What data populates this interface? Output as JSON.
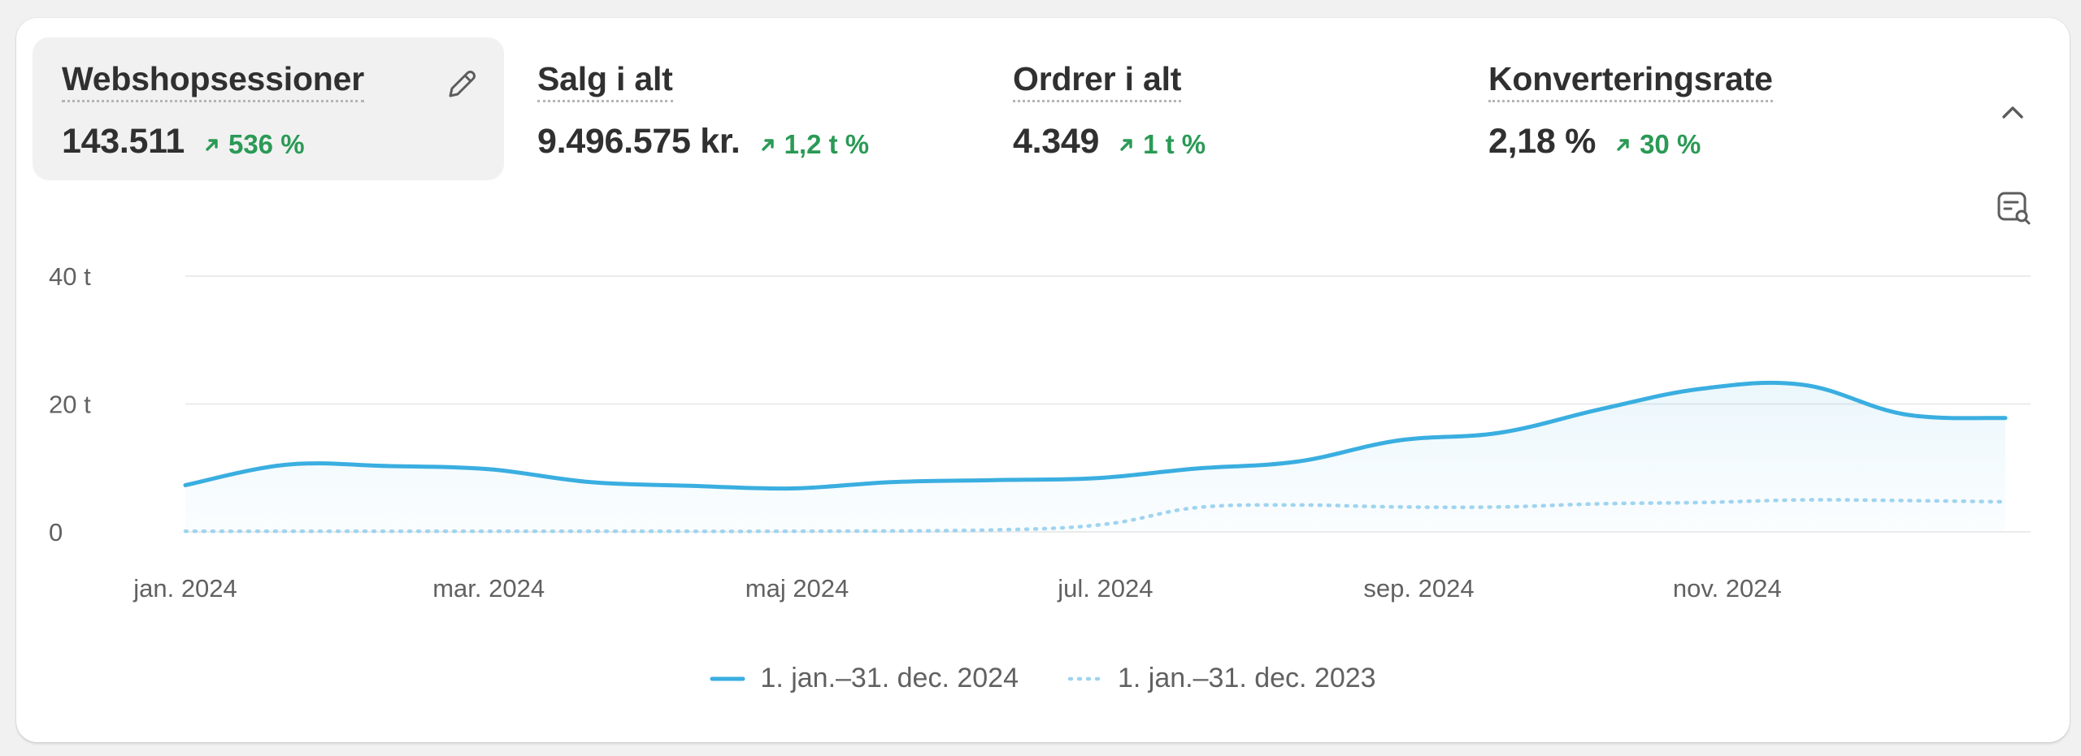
{
  "metrics": [
    {
      "label": "Webshopsessioner",
      "value": "143.511",
      "delta": "536 %",
      "active": true
    },
    {
      "label": "Salg i alt",
      "value": "9.496.575 kr.",
      "delta": "1,2 t %",
      "active": false
    },
    {
      "label": "Ordrer i alt",
      "value": "4.349",
      "delta": "1 t %",
      "active": false
    },
    {
      "label": "Konverteringsrate",
      "value": "2,18 %",
      "delta": "30 %",
      "active": false
    }
  ],
  "icons": {
    "edit": "pencil-icon",
    "collapse": "chevron-up-icon",
    "inspect": "search-document-icon",
    "trend": "arrow-up-right-icon"
  },
  "colors": {
    "primary_series": "#3aaee0",
    "comparison_series": "#9fd4ef",
    "positive": "#2a9a55"
  },
  "chart_data": {
    "type": "line",
    "x_ticks": [
      "jan. 2024",
      "mar. 2024",
      "maj 2024",
      "jul. 2024",
      "sep. 2024",
      "nov. 2024"
    ],
    "y_ticks": [
      "0",
      "20 t",
      "40 t"
    ],
    "ylim": [
      0,
      40000
    ],
    "grid": true,
    "legend": "bottom-center",
    "series": [
      {
        "name": "1. jan.–31. dec. 2024",
        "style": "solid",
        "x": [
          "2024-01-01",
          "2024-01-21",
          "2024-02-10",
          "2024-03-01",
          "2024-03-21",
          "2024-04-10",
          "2024-04-30",
          "2024-05-20",
          "2024-06-09",
          "2024-06-29",
          "2024-07-19",
          "2024-08-08",
          "2024-08-28",
          "2024-09-17",
          "2024-10-07",
          "2024-10-27",
          "2024-11-16",
          "2024-12-06",
          "2024-12-26"
        ],
        "values": [
          7300,
          10500,
          10300,
          9800,
          7800,
          7200,
          6800,
          7800,
          8100,
          8400,
          9900,
          11000,
          14300,
          15500,
          19200,
          22400,
          23000,
          18400,
          17800
        ]
      },
      {
        "name": "1. jan.–31. dec. 2023",
        "style": "dotted",
        "x": [
          "2024-01-01",
          "2024-02-10",
          "2024-03-21",
          "2024-04-30",
          "2024-06-09",
          "2024-07-01",
          "2024-07-19",
          "2024-08-08",
          "2024-08-28",
          "2024-09-17",
          "2024-10-07",
          "2024-10-27",
          "2024-11-16",
          "2024-12-06",
          "2024-12-26"
        ],
        "values": [
          100,
          100,
          100,
          100,
          300,
          1200,
          3800,
          4200,
          3900,
          3900,
          4400,
          4600,
          5000,
          4900,
          4700
        ]
      }
    ]
  },
  "legend_items": [
    {
      "label": "1. jan.–31. dec. 2024"
    },
    {
      "label": "1. jan.–31. dec. 2023"
    }
  ]
}
